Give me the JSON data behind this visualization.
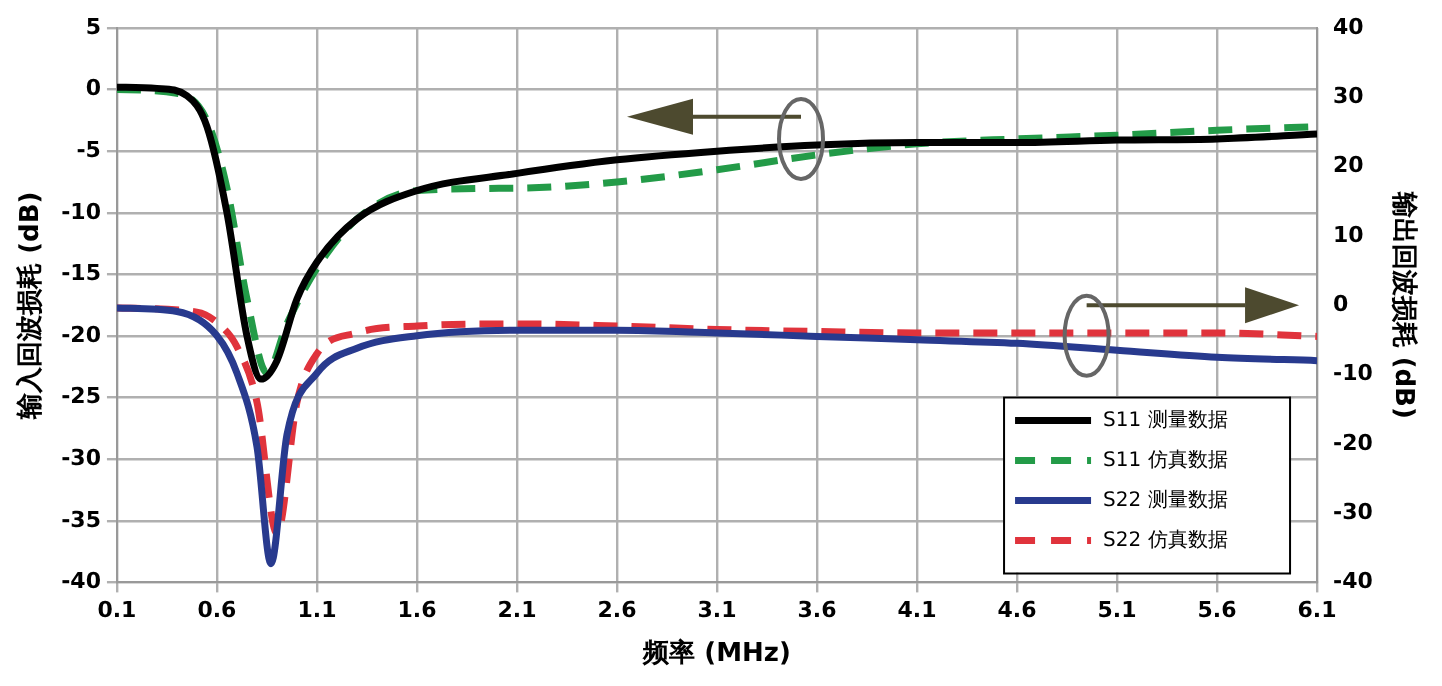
{
  "chart_data": {
    "type": "line",
    "xlabel": "频率 (MHz)",
    "ylabel": "输入回波损耗 (dB)",
    "y2label": "输出回波损耗 (dB)",
    "xlim": [
      0.1,
      6.1
    ],
    "xticks": [
      0.1,
      0.6,
      1.1,
      1.6,
      2.1,
      2.6,
      3.1,
      3.6,
      4.1,
      4.6,
      5.1,
      5.6,
      6.1
    ],
    "ylim": [
      -40,
      5
    ],
    "yticks": [
      -40,
      -35,
      -30,
      -25,
      -20,
      -15,
      -10,
      -5,
      0,
      5
    ],
    "y2lim": [
      -40,
      40
    ],
    "y2ticks": [
      -40,
      -30,
      -20,
      -10,
      0,
      10,
      20,
      30,
      40
    ],
    "grid": true,
    "legend": "bottom right",
    "marker": "none",
    "series": [
      {
        "name": "S11 测量数据",
        "color": "#000000",
        "line_style": "solid",
        "x": [
          0.1,
          0.3,
          0.45,
          0.55,
          0.65,
          0.75,
          0.82,
          0.9,
          1.0,
          1.1,
          1.3,
          1.6,
          2.1,
          2.6,
          3.1,
          3.6,
          4.1,
          4.6,
          5.1,
          5.6,
          6.1
        ],
        "values": [
          0.2,
          0.1,
          -0.5,
          -3,
          -10,
          -20,
          -23.5,
          -22,
          -17,
          -14,
          -10.5,
          -8.2,
          -6.8,
          -5.7,
          -5,
          -4.5,
          -4.3,
          -4.3,
          -4.1,
          -4,
          -3.6
        ]
      },
      {
        "name": "S11 仿真数据",
        "color": "#239b48",
        "line_style": "dashed",
        "x": [
          0.1,
          0.4,
          0.55,
          0.65,
          0.75,
          0.85,
          0.95,
          1.1,
          1.3,
          1.6,
          2.1,
          2.6,
          3.1,
          3.6,
          4.1,
          4.6,
          5.1,
          5.6,
          6.1
        ],
        "values": [
          0,
          -0.3,
          -2.5,
          -8,
          -17,
          -23,
          -19,
          -14.5,
          -10.5,
          -8.2,
          -8,
          -7.5,
          -6.5,
          -5.3,
          -4.4,
          -4,
          -3.7,
          -3.3,
          -3
        ]
      },
      {
        "name": "S22 测量数据",
        "color": "#283a8e",
        "line_style": "solid",
        "axis": "y2",
        "x": [
          0.1,
          0.4,
          0.6,
          0.7,
          0.8,
          0.87,
          0.95,
          1.1,
          1.3,
          1.6,
          2.1,
          2.6,
          3.1,
          3.6,
          4.1,
          4.6,
          5.1,
          5.6,
          6.1
        ],
        "values": [
          -0.4,
          -0.9,
          -4.4,
          -9.8,
          -20.4,
          -37.3,
          -18.7,
          -9.8,
          -6.2,
          -4.4,
          -3.6,
          -3.6,
          -4,
          -4.5,
          -5,
          -5.5,
          -6.5,
          -7.5,
          -8
        ]
      },
      {
        "name": "S22 仿真数据",
        "color": "#e0333c",
        "line_style": "dashed",
        "axis": "y2",
        "x": [
          0.1,
          0.5,
          0.6,
          0.7,
          0.8,
          0.9,
          1.0,
          1.1,
          1.3,
          1.6,
          2.1,
          2.6,
          3.1,
          3.6,
          4.1,
          4.6,
          5.1,
          5.6,
          6.1
        ],
        "values": [
          -0.4,
          -1,
          -2.5,
          -6,
          -14,
          -33,
          -14,
          -7,
          -4,
          -3,
          -2.7,
          -3,
          -3.5,
          -3.8,
          -4,
          -4,
          -4,
          -4,
          -4.5
        ]
      }
    ]
  }
}
